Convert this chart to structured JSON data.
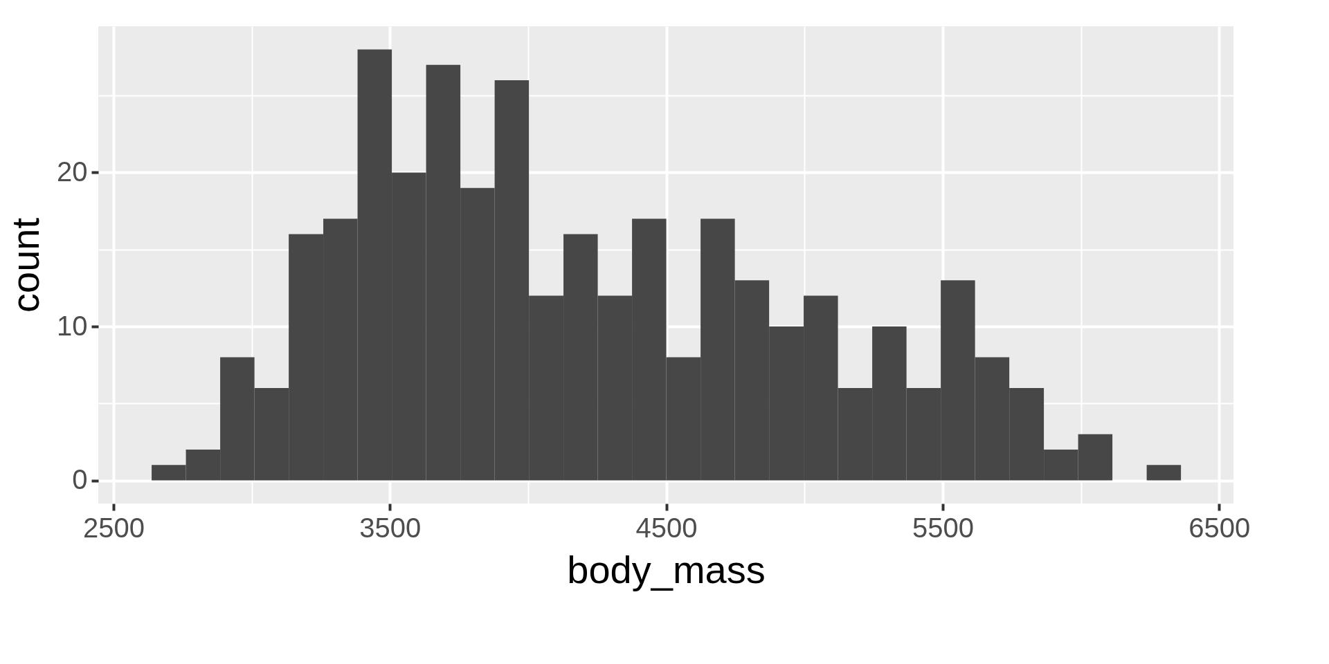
{
  "chart_data": {
    "type": "histogram",
    "xlabel": "body_mass",
    "ylabel": "count",
    "color": "#474747",
    "bins": [
      2638,
      2762,
      2886,
      3010,
      3134,
      3259,
      3383,
      3507,
      3631,
      3755,
      3879,
      4003,
      4128,
      4252,
      4376,
      4500,
      4624,
      4748,
      4872,
      4997,
      5121,
      5245,
      5369,
      5493,
      5617,
      5741,
      5866,
      5990,
      6114,
      6238,
      6362
    ],
    "values": [
      1,
      2,
      8,
      6,
      16,
      17,
      28,
      20,
      27,
      19,
      26,
      12,
      16,
      12,
      17,
      8,
      17,
      13,
      10,
      12,
      6,
      10,
      6,
      13,
      8,
      6,
      2,
      3,
      0,
      1
    ],
    "xlim": [
      2445,
      6552
    ],
    "ylim": [
      -1.5,
      29.5
    ],
    "xticks": [
      2500,
      {
        "value": 3000,
        "label": null
      },
      3500,
      {
        "value": 4000,
        "label": null
      },
      4500,
      {
        "value": 5000,
        "label": null
      },
      5500,
      {
        "value": 6000,
        "label": null
      },
      6500
    ],
    "yticks": [
      0,
      {
        "value": 5,
        "label": null
      },
      10,
      {
        "value": 15,
        "label": null
      },
      20,
      {
        "value": 25,
        "label": null
      }
    ],
    "grid": true
  }
}
